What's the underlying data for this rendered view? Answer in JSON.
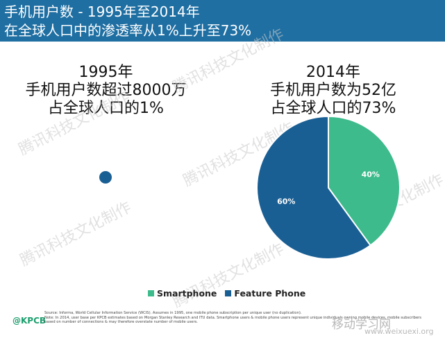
{
  "header": {
    "line1": "手机用户数 - 1995年至2014年",
    "line2": "在全球人口中的渗透率从1%上升至73%",
    "color": "#1f6fa3"
  },
  "left": {
    "year": "1995年",
    "line2": "手机用户数超过8000万",
    "line3": "占全球人口的1%"
  },
  "right": {
    "year": "2014年",
    "line2": "手机用户数为52亿",
    "line3": "占全球人口的73%"
  },
  "chart_data": [
    {
      "type": "pie",
      "title": "1995年",
      "slices": [
        {
          "label": "Feature Phone",
          "value": 100,
          "color": "#1a5f94"
        }
      ]
    },
    {
      "type": "pie",
      "title": "2014年",
      "slices": [
        {
          "label": "Smartphone",
          "value": 40,
          "display": "40%",
          "color": "#3dbb8c"
        },
        {
          "label": "Feature Phone",
          "value": 60,
          "display": "60%",
          "color": "#1a5f94"
        }
      ],
      "legend": "bottom"
    }
  ],
  "legend": {
    "items": [
      {
        "label": "Smartphone",
        "color": "#3dbb8c"
      },
      {
        "label": "Feature Phone",
        "color": "#1a5f94"
      }
    ]
  },
  "footer": {
    "logo": "@KPCB",
    "source": "Source: Informa, World Cellular Information Service (WCIS). Assumes in 1995, one mobile phone subscription per unique user (no duplication).",
    "note": "Note: In 2014, user base per KPCB estimates based on Morgan Stanley Research and ITU data. Smartphone users & mobile phone users represent unique individuals owning mobile devices, mobile subscribers based on number of connections & may therefore overstate number of mobile users."
  },
  "watermark": {
    "text": "腾讯科技文化制作",
    "site": "移动学习网",
    "site_url": "www.weixuexi.org"
  }
}
